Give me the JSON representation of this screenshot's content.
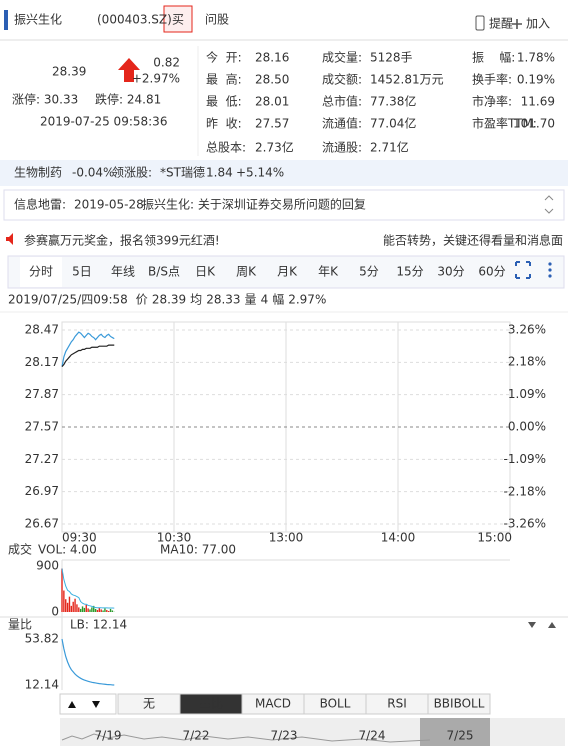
{
  "header": {
    "name": "振兴生化",
    "code": "(000403.SZ)",
    "buy": "买",
    "ask": "问股",
    "remind": "提醒",
    "add": "加入"
  },
  "quote": {
    "price": "28.39",
    "change": "0.82",
    "change_pct": "+2.97%",
    "limit_up": "涨停: 30.33",
    "limit_down": "跌停: 24.81",
    "time": "2019-07-25 09:58:36"
  },
  "stats": [
    [
      {
        "label": "今  开:",
        "value": "28.16",
        "color": "#e4261b"
      },
      {
        "label": "最  高:",
        "value": "28.50",
        "color": "#e4261b"
      },
      {
        "label": "最  低:",
        "value": "28.01",
        "color": "#e4261b"
      },
      {
        "label": "昨  收:",
        "value": "27.57",
        "color": "#555555"
      },
      {
        "label": "总股本:",
        "value": "2.73亿",
        "color": "#555555"
      }
    ],
    [
      {
        "label": "成交量:",
        "value": "5128手",
        "color": "#555555"
      },
      {
        "label": "成交额:",
        "value": "1452.81万元",
        "color": "#555555"
      },
      {
        "label": "总市值:",
        "value": "77.38亿",
        "color": "#555555"
      },
      {
        "label": "流通值:",
        "value": "77.04亿",
        "color": "#555555"
      },
      {
        "label": "流通股:",
        "value": "2.71亿",
        "color": "#555555"
      }
    ],
    [
      {
        "label": "振    幅:",
        "value": "1.78%",
        "color": "#555555"
      },
      {
        "label": "换手率:",
        "value": "0.19%",
        "color": "#555555"
      },
      {
        "label": "市净率:",
        "value": "11.69",
        "color": "#555555"
      },
      {
        "label": "市盈率TTM:",
        "value": "101.70",
        "color": "#555555"
      }
    ]
  ],
  "sector": {
    "name": "生物制药",
    "change": "-0.04%",
    "leader_label": "领涨股:",
    "leader": "*ST瑞德",
    "leader_price": "1.84",
    "leader_change": "+5.14%"
  },
  "info": {
    "label": "信息地雷:",
    "date": "2019-05-28",
    "text": "振兴生化: 关于深圳证券交易所问题的回复"
  },
  "ad": {
    "left": "参赛赢万元奖金，报名领399元红酒!",
    "right": "能否转势，关键还得看量和消息面"
  },
  "tabs": [
    "分时",
    "5日",
    "年线",
    "B/S点",
    "日K",
    "周K",
    "月K",
    "年K",
    "5分",
    "15分",
    "30分",
    "60分"
  ],
  "status": [
    "2019/07/25/四09:58",
    "价",
    "28.39",
    "均",
    "28.33",
    "量",
    "4",
    "幅",
    "2.97%"
  ],
  "chart_data": {
    "type": "line",
    "price_color": "#3a9ad9",
    "avg_color": "#222222",
    "up_color": "#e4261b",
    "down_color": "#2a9a2a",
    "xlim": [
      0,
      240
    ],
    "xticks": [
      {
        "value": 0,
        "label": "09:30"
      },
      {
        "value": 60,
        "label": "10:30"
      },
      {
        "value": 120,
        "label": "13:00"
      },
      {
        "value": 180,
        "label": "14:00"
      },
      {
        "value": 240,
        "label": "15:00"
      }
    ],
    "ylim": [
      26.67,
      28.47
    ],
    "yticks": [
      28.47,
      28.17,
      27.87,
      27.57,
      27.27,
      26.97,
      26.67
    ],
    "y2lim": [
      -3.26,
      3.26
    ],
    "y2ticks": [
      {
        "value": 3.26,
        "label": "3.26%"
      },
      {
        "value": 2.18,
        "label": "2.18%"
      },
      {
        "value": 1.09,
        "label": "1.09%"
      },
      {
        "value": 0,
        "label": "0.00%"
      },
      {
        "value": -1.09,
        "label": "-1.09%"
      },
      {
        "value": -2.18,
        "label": "-2.18%"
      },
      {
        "value": -3.26,
        "label": "-3.26%"
      }
    ],
    "price": [
      28.13,
      28.22,
      28.27,
      28.3,
      28.33,
      28.36,
      28.38,
      28.41,
      28.43,
      28.45,
      28.44,
      28.42,
      28.4,
      28.42,
      28.44,
      28.43,
      28.41,
      28.4,
      28.38,
      28.4,
      28.42,
      28.43,
      28.41,
      28.4,
      28.42,
      28.43,
      28.41,
      28.4,
      28.39
    ],
    "avg": [
      28.13,
      28.15,
      28.18,
      28.2,
      28.22,
      28.24,
      28.25,
      28.26,
      28.27,
      28.28,
      28.28,
      28.29,
      28.29,
      28.3,
      28.3,
      28.3,
      28.31,
      28.31,
      28.31,
      28.31,
      28.32,
      28.32,
      28.32,
      28.32,
      28.32,
      28.33,
      28.33,
      28.33,
      28.33
    ],
    "volume_title": "成交",
    "vol_label": "VOL: 4.00",
    "ma10_label": "MA10: 77.00",
    "ma10_color": "#3ab0e0",
    "vol_ylim": [
      0,
      900
    ],
    "vol_yticks": [
      900,
      0
    ],
    "volume": [
      850,
      420,
      250,
      180,
      300,
      120,
      200,
      260,
      150,
      90,
      60,
      110,
      80,
      140,
      70,
      50,
      90,
      120,
      60,
      40,
      80,
      50,
      30,
      70,
      40,
      20,
      60,
      30,
      4
    ],
    "ma10": [
      850,
      635,
      507,
      425,
      400,
      353,
      331,
      322,
      303,
      282,
      203,
      172,
      155,
      151,
      128,
      121,
      110,
      96,
      87,
      82,
      84,
      82,
      81,
      80,
      80,
      79,
      78,
      78,
      77
    ],
    "ratio_title": "量比",
    "ratio_label": "LB: 12.14",
    "ratio_color": "#3a9ad9",
    "ratio_ylim": [
      12.14,
      53.82
    ],
    "ratio_yticks": [
      53.82,
      12.14
    ],
    "ratio": [
      53.82,
      45,
      38,
      33,
      29,
      26,
      24,
      22,
      20.5,
      19.3,
      18.2,
      17.3,
      16.6,
      16,
      15.5,
      15,
      14.6,
      14.3,
      14,
      13.7,
      13.4,
      13.2,
      13,
      12.8,
      12.6,
      12.5,
      12.4,
      12.2,
      12.14
    ]
  },
  "indicator_tabs": [
    "无",
    "量比",
    "MACD",
    "BOLL",
    "RSI",
    "BBIBOLL"
  ],
  "dates": [
    "7/19",
    "7/22",
    "7/23",
    "7/24",
    "7/25"
  ]
}
